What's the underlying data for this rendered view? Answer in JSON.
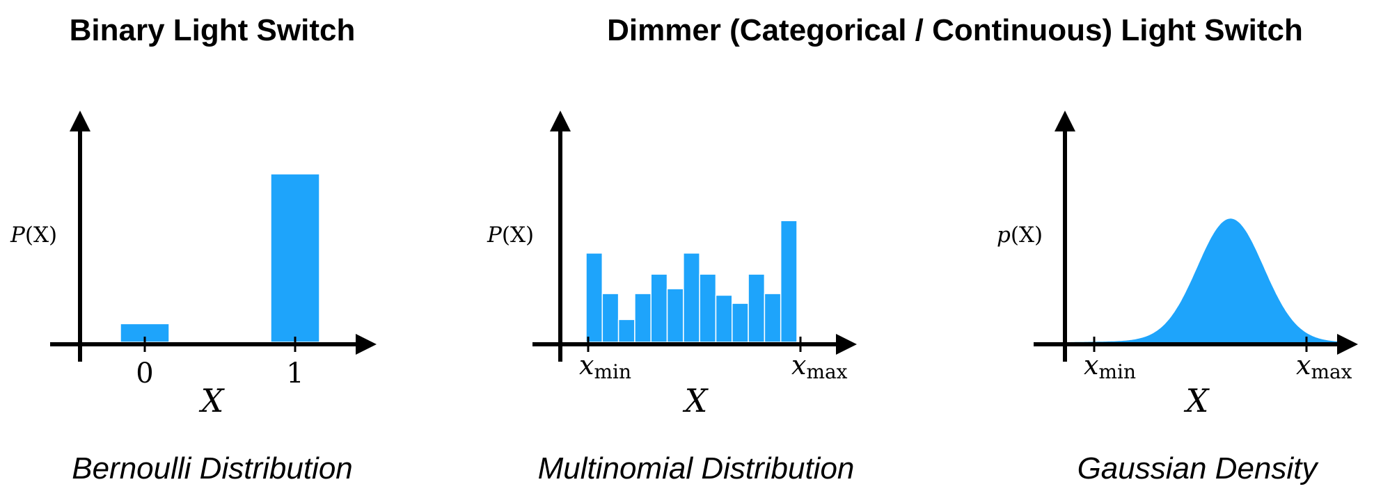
{
  "headings": {
    "binary": "Binary Light Switch",
    "dimmer": "Dimmer (Categorical / Continuous) Light Switch"
  },
  "panels": [
    {
      "ylabel_main": "P",
      "ylabel_arg": "(X)",
      "xlabel": "X",
      "ticks": [
        "0",
        "1"
      ],
      "caption": "Bernoulli Distribution"
    },
    {
      "ylabel_main": "P",
      "ylabel_arg": "(X)",
      "xlabel": "X",
      "tick_min_var": "x",
      "tick_min_sub": "min",
      "tick_max_var": "x",
      "tick_max_sub": "max",
      "caption": "Multinomial Distribution"
    },
    {
      "ylabel_main": "p",
      "ylabel_arg": "(X)",
      "xlabel": "X",
      "tick_min_var": "x",
      "tick_min_sub": "min",
      "tick_max_var": "x",
      "tick_max_sub": "max",
      "caption": "Gaussian Density"
    }
  ],
  "chart_data": [
    {
      "type": "bar",
      "categories": [
        "0",
        "1"
      ],
      "values": [
        0.11,
        1.0
      ]
    },
    {
      "type": "bar",
      "values": [
        0.55,
        0.3,
        0.14,
        0.3,
        0.42,
        0.33,
        0.55,
        0.42,
        0.29,
        0.24,
        0.42,
        0.3,
        0.75
      ]
    },
    {
      "type": "area",
      "curve": "gaussian",
      "mean": 0.59,
      "std": 0.12,
      "peak": 0.73
    }
  ],
  "colors": {
    "fill": "#1EA4FB"
  }
}
